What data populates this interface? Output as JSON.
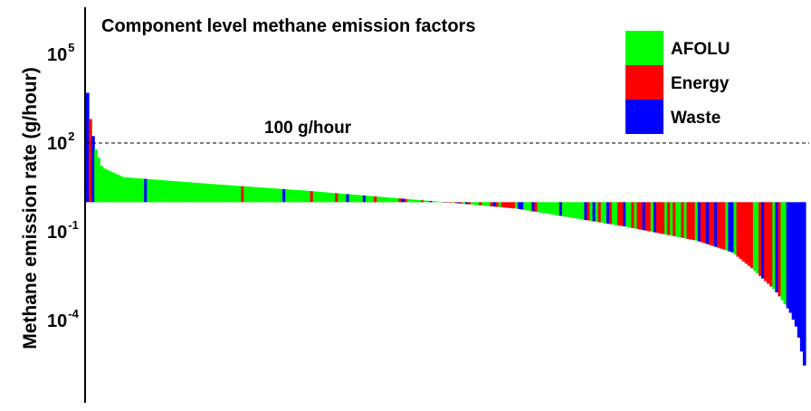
{
  "chart_data": {
    "type": "bar",
    "title": "Component level methane emission factors",
    "ylabel": "Methane emission rate (g/hour)",
    "xlabel": "",
    "y_scale": "log",
    "ylim": [
      1e-06,
      200000
    ],
    "y_ticks": [
      {
        "base": "10",
        "exp": "5",
        "value": 100000
      },
      {
        "base": "10",
        "exp": "2",
        "value": 100
      },
      {
        "base": "10",
        "exp": "-1",
        "value": 0.1
      },
      {
        "base": "10",
        "exp": "-4",
        "value": 0.0001
      }
    ],
    "baseline": 1.0,
    "reference_line": {
      "value": 100,
      "label": "100 g/hour",
      "style": "dashed"
    },
    "legend": {
      "placement": "top-right",
      "items": [
        {
          "name": "AFOLU",
          "color": "#00ff00"
        },
        {
          "name": "Energy",
          "color": "#ff0000"
        },
        {
          "name": "Waste",
          "color": "#0000ff"
        }
      ]
    },
    "grid": false,
    "bars_note": "",
    "value_profile": {
      "count": 260,
      "knots": [
        {
          "rank": 0.0,
          "value": 5000
        },
        {
          "rank": 0.004,
          "value": 600
        },
        {
          "rank": 0.01,
          "value": 80
        },
        {
          "rank": 0.02,
          "value": 15
        },
        {
          "rank": 0.05,
          "value": 7
        },
        {
          "rank": 0.18,
          "value": 4
        },
        {
          "rank": 0.3,
          "value": 2.5
        },
        {
          "rank": 0.45,
          "value": 1.25
        },
        {
          "rank": 0.5,
          "value": 1.0
        },
        {
          "rank": 0.6,
          "value": 0.6
        },
        {
          "rank": 0.75,
          "value": 0.15
        },
        {
          "rank": 0.85,
          "value": 0.05
        },
        {
          "rank": 0.9,
          "value": 0.02
        },
        {
          "rank": 0.93,
          "value": 0.005
        },
        {
          "rank": 0.96,
          "value": 0.001
        },
        {
          "rank": 0.98,
          "value": 0.0002
        },
        {
          "rank": 0.99,
          "value": 5e-05
        },
        {
          "rank": 1.0,
          "value": 3e-06
        }
      ]
    }
  }
}
